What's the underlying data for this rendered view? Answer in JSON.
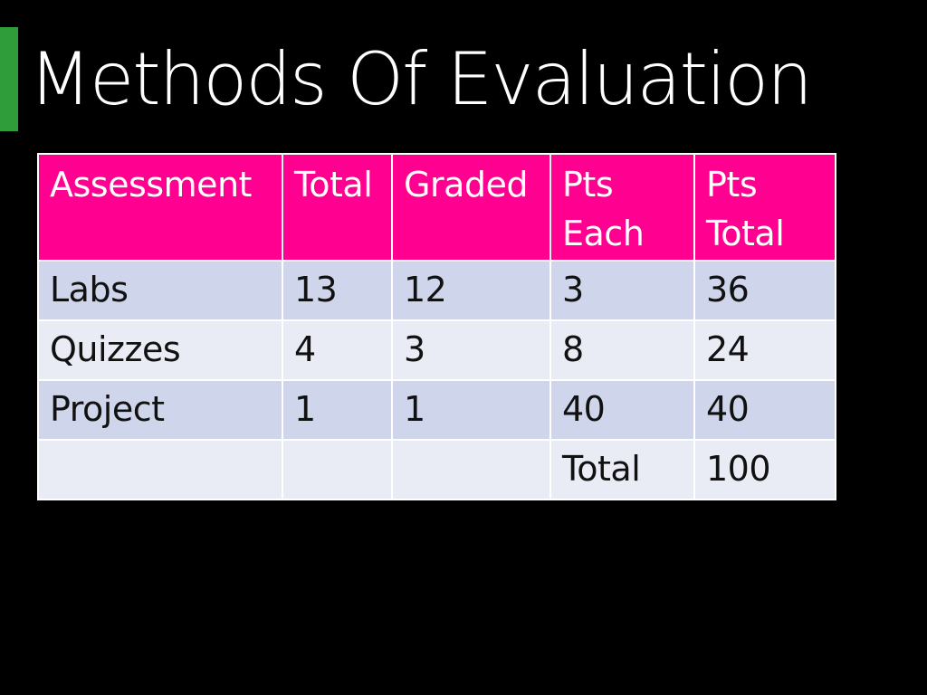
{
  "slide": {
    "title": "Methods Of Evaluation",
    "accent_color": "#2f9e3a",
    "header_color": "#ff0090",
    "row_color_odd": "#cfd5ea",
    "row_color_even": "#e9ebf5"
  },
  "table": {
    "headers": [
      "Assessment",
      "Total",
      "Graded",
      "Pts Each",
      "Pts Total"
    ],
    "rows": [
      [
        "Labs",
        "13",
        "12",
        "3",
        "36"
      ],
      [
        "Quizzes",
        "4",
        "3",
        "8",
        "24"
      ],
      [
        "Project",
        "1",
        "1",
        "40",
        "40"
      ],
      [
        "",
        "",
        "",
        "Total",
        "100"
      ]
    ]
  }
}
